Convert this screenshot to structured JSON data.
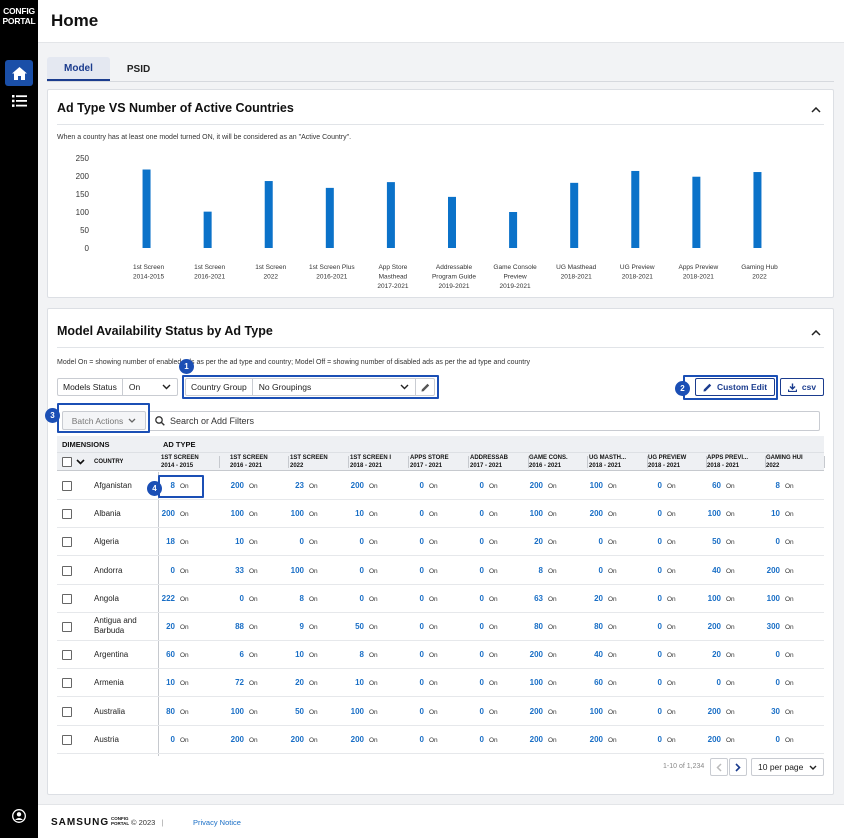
{
  "sidebar": {
    "logo_line1": "CONFIG",
    "logo_line2": "PORTAL"
  },
  "header": {
    "title": "Home"
  },
  "tabs": [
    {
      "label": "Model"
    },
    {
      "label": "PSID"
    }
  ],
  "chart_panel": {
    "title": "Ad Type VS Number of Active Countries",
    "note": "When a country has at least one model turned ON, it will be considered as an \"Active Country\"."
  },
  "chart_data": {
    "type": "bar",
    "title": "Ad Type VS Number of Active Countries",
    "categories": [
      [
        "1st Screen",
        "2014-2015"
      ],
      [
        "1st Screen",
        "2016-2021"
      ],
      [
        "1st Screen",
        "2022"
      ],
      [
        "1st Screen Plus",
        "2016-2021"
      ],
      [
        "App Store",
        "Masthead",
        "2017-2021"
      ],
      [
        "Addressable",
        "Program Guide",
        "2019-2021"
      ],
      [
        "Game Console",
        "Preview",
        "2019-2021"
      ],
      [
        "UG Masthead",
        "2018-2021"
      ],
      [
        "UG Preview",
        "2018-2021"
      ],
      [
        "Apps Preview",
        "2018-2021"
      ],
      [
        "Gaming Hub",
        "2022"
      ]
    ],
    "values": [
      218,
      101,
      186,
      167,
      183,
      142,
      100,
      181,
      214,
      198,
      211
    ],
    "ylim": [
      0,
      250
    ],
    "yticks": [
      "0",
      "50",
      "100",
      "150",
      "200",
      "250"
    ],
    "grid": false,
    "color": "#0b72c9"
  },
  "status_panel": {
    "title": "Model Availability Status by Ad Type",
    "note": "Model On = showing number of enabled ads as per the ad type and country; Model Off = showing number of disabled ads as per the ad type and country"
  },
  "controls": {
    "models_status_label": "Models Status",
    "models_status_value": "On",
    "country_group_label": "Country Group",
    "country_group_value": "No Groupings",
    "custom_edit": "Custom Edit",
    "csv": "csv",
    "batch_actions": "Batch Actions",
    "search_placeholder": "Search or Add Filters"
  },
  "callouts": [
    "1",
    "2",
    "3",
    "4"
  ],
  "table": {
    "dimensions_label": "DIMENSIONS",
    "ad_type_label": "AD TYPE",
    "country_header": "COUNTRY",
    "on_label": "On",
    "columns": [
      [
        "1ST SCREEN",
        "2014 - 2015"
      ],
      [
        "1ST SCREEN",
        "2016 - 2021"
      ],
      [
        "1ST SCREEN",
        "2022"
      ],
      [
        "1ST SCREEN I",
        "2018 - 2021"
      ],
      [
        "APPS STORE",
        "2017 - 2021"
      ],
      [
        "ADDRESSAB",
        "2017 - 2021"
      ],
      [
        "GAME CONS.",
        "2016 - 2021"
      ],
      [
        "UG MASTH...",
        "2018 - 2021"
      ],
      [
        "UG PREVIEW",
        "2018 - 2021"
      ],
      [
        "APPS PREVI...",
        "2018 - 2021"
      ],
      [
        "GAMING HUI",
        "2022"
      ]
    ],
    "rows": [
      {
        "country": "Afganistan",
        "values": [
          "8",
          "200",
          "23",
          "200",
          "0",
          "0",
          "200",
          "100",
          "0",
          "60",
          "8"
        ]
      },
      {
        "country": "Albania",
        "values": [
          "200",
          "100",
          "100",
          "10",
          "0",
          "0",
          "100",
          "200",
          "0",
          "100",
          "10"
        ]
      },
      {
        "country": "Algeria",
        "values": [
          "18",
          "10",
          "0",
          "0",
          "0",
          "0",
          "20",
          "0",
          "0",
          "50",
          "0"
        ]
      },
      {
        "country": "Andorra",
        "values": [
          "0",
          "33",
          "100",
          "0",
          "0",
          "0",
          "8",
          "0",
          "0",
          "40",
          "200"
        ]
      },
      {
        "country": "Angola",
        "values": [
          "222",
          "0",
          "8",
          "0",
          "0",
          "0",
          "63",
          "20",
          "0",
          "100",
          "100"
        ]
      },
      {
        "country": "Antigua and Barbuda",
        "values": [
          "20",
          "88",
          "9",
          "50",
          "0",
          "0",
          "80",
          "80",
          "0",
          "200",
          "300"
        ]
      },
      {
        "country": "Argentina",
        "values": [
          "60",
          "6",
          "10",
          "8",
          "0",
          "0",
          "200",
          "40",
          "0",
          "20",
          "0"
        ]
      },
      {
        "country": "Armenia",
        "values": [
          "10",
          "72",
          "20",
          "10",
          "0",
          "0",
          "100",
          "60",
          "0",
          "0",
          "0"
        ]
      },
      {
        "country": "Australia",
        "values": [
          "80",
          "100",
          "50",
          "100",
          "0",
          "0",
          "200",
          "100",
          "0",
          "200",
          "30"
        ]
      },
      {
        "country": "Austria",
        "values": [
          "0",
          "200",
          "200",
          "200",
          "0",
          "0",
          "200",
          "200",
          "0",
          "200",
          "0"
        ]
      }
    ]
  },
  "pagination": {
    "range": "1-10 of 1,234",
    "per_page": "10 per page"
  },
  "footer": {
    "brand": "SAMSUNG",
    "mini1": "CONFIG",
    "mini2": "PORTAL",
    "copyright": "© 2023",
    "separator": "|",
    "privacy": "Privacy Notice"
  }
}
